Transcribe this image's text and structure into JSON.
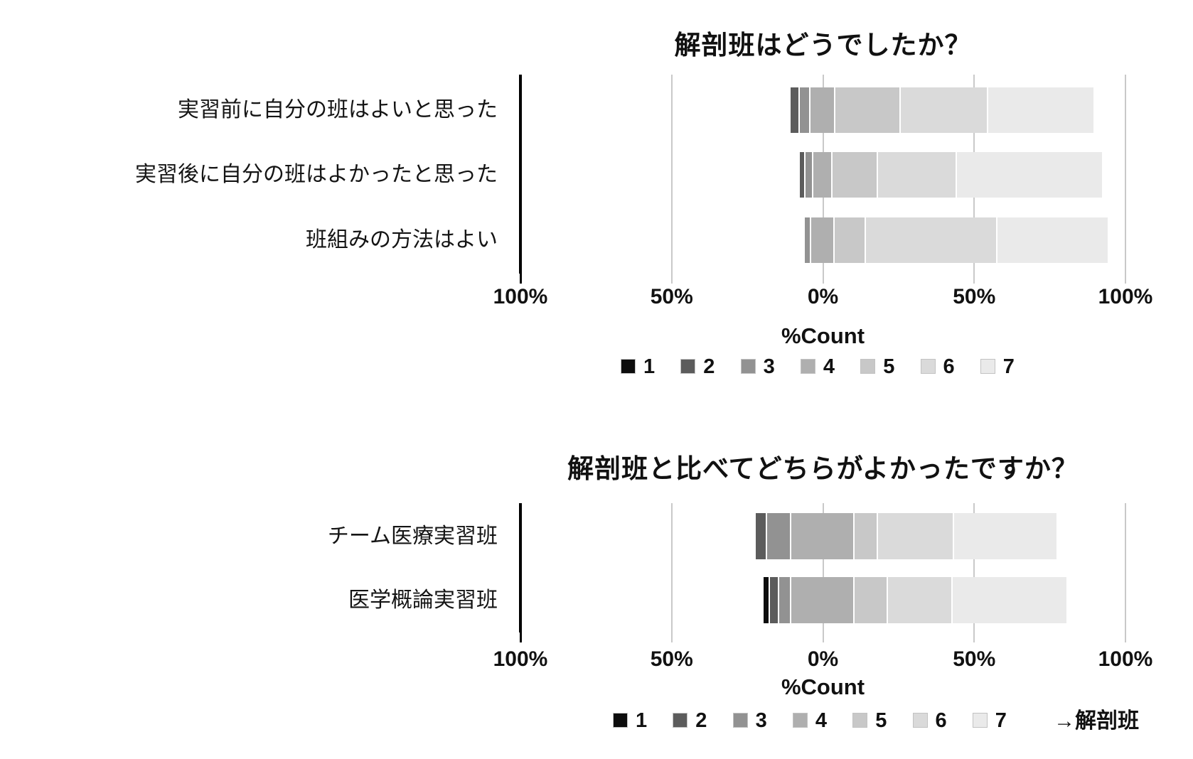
{
  "palette": {
    "1": "#0d0d0d",
    "2": "#5c5c5c",
    "3": "#929292",
    "4": "#afafaf",
    "5": "#c8c8c8",
    "6": "#dadada",
    "7": "#eaeaea"
  },
  "chart_data": [
    {
      "type": "bar",
      "variant": "diverging-stacked-likert",
      "title": "解剖班はどうでしたか？",
      "xlabel": "%Count",
      "x_tick_labels": [
        "100%",
        "50%",
        "0%",
        "50%",
        "100%"
      ],
      "xlim": [
        -100,
        100
      ],
      "grid": true,
      "legend_position": "bottom",
      "legend_labels": [
        "1",
        "2",
        "3",
        "4",
        "5",
        "6",
        "7"
      ],
      "legend_note": "",
      "neutral_category": "4",
      "categories": [
        "実習前に自分の班はよいと思った",
        "実習後に自分の班はよかったと思った",
        "班組みの方法はよい"
      ],
      "series": [
        {
          "name": "1",
          "values": [
            0,
            0,
            0
          ]
        },
        {
          "name": "2",
          "values": [
            2.9,
            1.8,
            0
          ]
        },
        {
          "name": "3",
          "values": [
            3.6,
            2.6,
            2.1
          ]
        },
        {
          "name": "4",
          "values": [
            8.2,
            6.5,
            7.6
          ]
        },
        {
          "name": "5",
          "values": [
            21.7,
            15.0,
            10.4
          ]
        },
        {
          "name": "6",
          "values": [
            28.8,
            26.0,
            43.4
          ]
        },
        {
          "name": "7",
          "values": [
            34.8,
            48.1,
            36.5
          ]
        }
      ]
    },
    {
      "type": "bar",
      "variant": "diverging-stacked-likert",
      "title": "解剖班と比べてどちらがよかったですか？",
      "xlabel": "%Count",
      "x_tick_labels": [
        "100%",
        "50%",
        "0%",
        "50%",
        "100%"
      ],
      "xlim": [
        -100,
        100
      ],
      "grid": true,
      "legend_position": "bottom",
      "legend_labels": [
        "1",
        "2",
        "3",
        "4",
        "5",
        "6",
        "7"
      ],
      "legend_note": "→解剖班",
      "neutral_category": "4",
      "categories": [
        "チーム医療実習班",
        "医学概論実習班"
      ],
      "series": [
        {
          "name": "1",
          "values": [
            0.4,
            2.2
          ]
        },
        {
          "name": "2",
          "values": [
            3.8,
            3.0
          ]
        },
        {
          "name": "3",
          "values": [
            8.0,
            4.0
          ]
        },
        {
          "name": "4",
          "values": [
            21.0,
            20.8
          ]
        },
        {
          "name": "5",
          "values": [
            7.8,
            11.0
          ]
        },
        {
          "name": "6",
          "values": [
            25.1,
            21.5
          ]
        },
        {
          "name": "7",
          "values": [
            33.9,
            37.5
          ]
        }
      ]
    }
  ]
}
